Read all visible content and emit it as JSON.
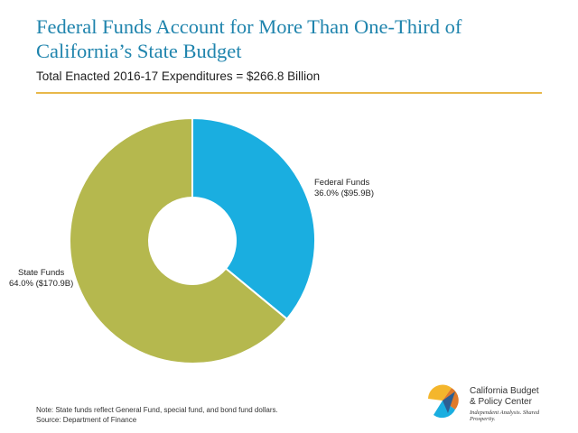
{
  "title": "Federal Funds Account for More Than One-Third of California’s State Budget",
  "subtitle": "Total Enacted 2016-17 Expenditures = $266.8 Billion",
  "chart_data": {
    "type": "pie",
    "title": "Federal Funds Account for More Than One-Third of California’s State Budget",
    "subtitle": "Total Enacted 2016-17 Expenditures = $266.8 Billion",
    "slices": [
      {
        "name": "Federal Funds",
        "percent": 36.0,
        "value": 95.9,
        "value_label": "36.0% ($95.9B)",
        "color": "#1aaee0"
      },
      {
        "name": "State Funds",
        "percent": 64.0,
        "value": 170.9,
        "value_label": "64.0% ($170.9B)",
        "color": "#b5b84e"
      }
    ],
    "total": 266.8,
    "unit": "Billion",
    "legend": "none"
  },
  "note": "Note: State funds reflect General Fund, special fund, and bond fund dollars.",
  "source": "Source: Department of Finance",
  "logo": {
    "name_line1": "California Budget",
    "name_line2": "& Policy Center",
    "tagline": "Independent Analysis. Shared Prosperity."
  },
  "colors": {
    "title": "#1f84ad",
    "rule": "#e8b84a",
    "federal": "#1aaee0",
    "state": "#b5b84e"
  }
}
